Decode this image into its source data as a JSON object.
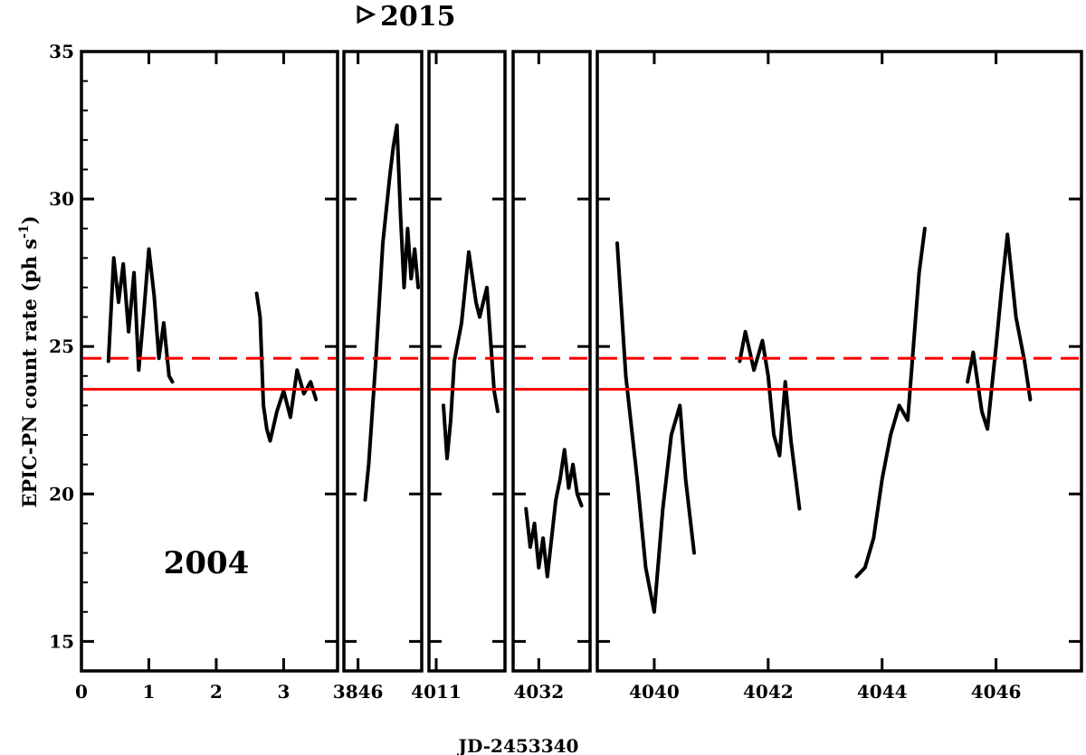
{
  "chart_data": {
    "type": "line",
    "title": "",
    "xlabel": "JD-2453340",
    "ylabel_main": "EPIC-PN count rate (ph s",
    "ylabel_sup": "-1",
    "ylabel_close": ")",
    "ylim": [
      14,
      35
    ],
    "yticks": [
      15,
      20,
      25,
      30,
      35
    ],
    "annotations": {
      "year_2004": "2004",
      "year_2015": "2015"
    },
    "reference_lines": [
      {
        "name": "solid",
        "value": 23.55,
        "color": "#ff0000",
        "style": "solid"
      },
      {
        "name": "dashed",
        "value": 24.6,
        "color": "#ff0000",
        "style": "dashed"
      }
    ],
    "panels": [
      {
        "xlim": [
          0,
          3.8
        ],
        "xticks": [
          0,
          1,
          2,
          3
        ],
        "tick_labels": [
          "0",
          "1",
          "2",
          "3"
        ],
        "series": [
          {
            "x": [
              0.4,
              0.48,
              0.55,
              0.62,
              0.7,
              0.78,
              0.85,
              0.92,
              1.0,
              1.08,
              1.15,
              1.22,
              1.3,
              1.35
            ],
            "y": [
              24.5,
              28.0,
              26.5,
              27.8,
              25.5,
              27.5,
              24.2,
              26.0,
              28.3,
              26.7,
              24.6,
              25.8,
              24.0,
              23.8
            ]
          },
          {
            "x": [
              2.6,
              2.65,
              2.7,
              2.75,
              2.8,
              2.9,
              3.0,
              3.1,
              3.2,
              3.3,
              3.4,
              3.48
            ],
            "y": [
              26.8,
              26.0,
              23.0,
              22.2,
              21.8,
              22.8,
              23.5,
              22.6,
              24.2,
              23.4,
              23.8,
              23.2
            ]
          }
        ]
      },
      {
        "xlim": [
          3845.8,
          3846.9
        ],
        "xticks": [
          3846
        ],
        "tick_labels": [
          "3846"
        ],
        "series": [
          {
            "x": [
              3846.1,
              3846.15,
              3846.25,
              3846.35,
              3846.45,
              3846.5,
              3846.55,
              3846.6,
              3846.65,
              3846.7,
              3846.75,
              3846.8,
              3846.85
            ],
            "y": [
              19.8,
              21.0,
              24.5,
              28.5,
              30.8,
              31.8,
              32.5,
              29.5,
              27.0,
              29.0,
              27.3,
              28.3,
              27.0
            ]
          }
        ]
      },
      {
        "xlim": [
          4010.9,
          4011.95
        ],
        "xticks": [
          4011
        ],
        "tick_labels": [
          "4011"
        ],
        "series": [
          {
            "x": [
              4011.1,
              4011.15,
              4011.2,
              4011.25,
              4011.35,
              4011.45,
              4011.55,
              4011.6,
              4011.7,
              4011.8,
              4011.85
            ],
            "y": [
              23.0,
              21.2,
              22.5,
              24.5,
              25.8,
              28.2,
              26.5,
              26.0,
              27.0,
              23.5,
              22.8
            ]
          }
        ]
      },
      {
        "xlim": [
          4031.7,
          4032.6
        ],
        "xticks": [
          4032
        ],
        "tick_labels": [
          "4032"
        ],
        "series": [
          {
            "x": [
              4031.85,
              4031.9,
              4031.95,
              4032.0,
              4032.05,
              4032.1,
              4032.15,
              4032.2,
              4032.25,
              4032.3,
              4032.35,
              4032.4,
              4032.45,
              4032.5
            ],
            "y": [
              19.5,
              18.2,
              19.0,
              17.5,
              18.5,
              17.2,
              18.5,
              19.8,
              20.5,
              21.5,
              20.2,
              21.0,
              20.0,
              19.6
            ]
          }
        ]
      },
      {
        "xlim": [
          4039.0,
          4047.5
        ],
        "xticks": [
          4040,
          4042,
          4044,
          4046
        ],
        "tick_labels": [
          "4040",
          "4042",
          "4044",
          "4046"
        ],
        "series": [
          {
            "x": [
              4039.35,
              4039.5,
              4039.7,
              4039.85,
              4040.0,
              4040.15,
              4040.3,
              4040.45,
              4040.55,
              4040.7
            ],
            "y": [
              28.5,
              24.0,
              20.5,
              17.5,
              16.0,
              19.5,
              22.0,
              23.0,
              20.5,
              18.0
            ]
          },
          {
            "x": [
              4041.5,
              4041.6,
              4041.75,
              4041.9,
              4042.0,
              4042.1,
              4042.2,
              4042.3,
              4042.4,
              4042.55
            ],
            "y": [
              24.5,
              25.5,
              24.2,
              25.2,
              24.0,
              22.0,
              21.3,
              23.8,
              21.8,
              19.5
            ]
          },
          {
            "x": [
              4043.55,
              4043.7,
              4043.85,
              4044.0,
              4044.15,
              4044.3,
              4044.45,
              4044.55,
              4044.65,
              4044.75
            ],
            "y": [
              17.2,
              17.5,
              18.5,
              20.5,
              22.0,
              23.0,
              22.5,
              25.0,
              27.5,
              29.0
            ]
          },
          {
            "x": [
              4045.5,
              4045.6,
              4045.75,
              4045.85,
              4046.0,
              4046.1,
              4046.2,
              4046.35,
              4046.5,
              4046.6
            ],
            "y": [
              23.8,
              24.8,
              22.8,
              22.2,
              25.0,
              27.0,
              28.8,
              26.0,
              24.5,
              23.2
            ]
          }
        ]
      }
    ]
  }
}
